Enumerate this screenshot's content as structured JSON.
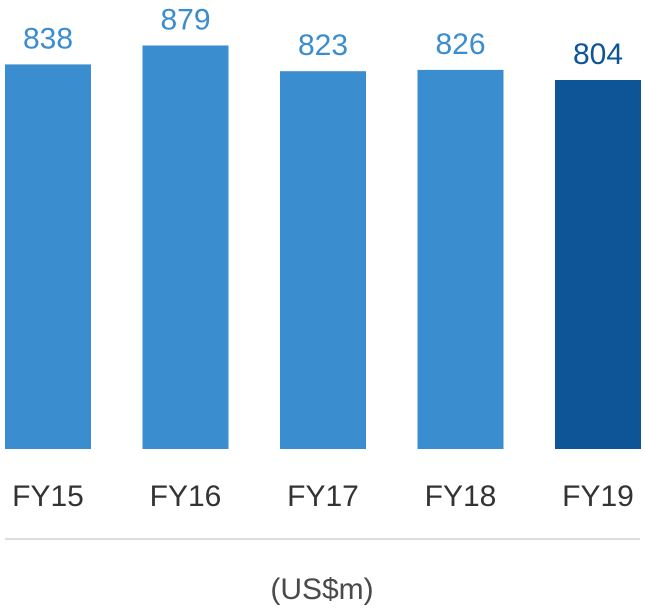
{
  "chart_data": {
    "type": "bar",
    "categories": [
      "FY15",
      "FY16",
      "FY17",
      "FY18",
      "FY19"
    ],
    "values": [
      838,
      879,
      823,
      826,
      804
    ],
    "data_labels": [
      "838",
      "879",
      "823",
      "826",
      "804"
    ],
    "unit_label": "(US$m)",
    "title": "",
    "xlabel": "",
    "ylabel": "",
    "ylim": [
      0,
      879
    ],
    "grid": false,
    "legend": "none",
    "colors": {
      "bar": "#3a8dce",
      "highlight_bar": "#0d5597",
      "label": "#3a8dce",
      "highlight_label": "#0d5597",
      "axis_line": "#d0d0d0",
      "text": "#333333"
    },
    "highlight_index": 4
  }
}
